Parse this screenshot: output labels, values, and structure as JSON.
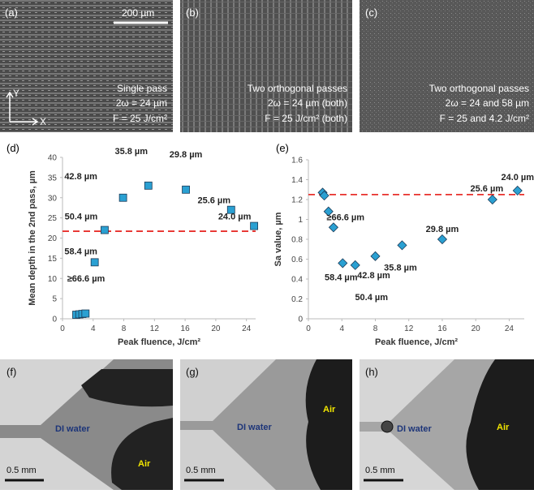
{
  "panels": {
    "a": {
      "label": "(a)",
      "scale_bar": "200 µm",
      "lines": [
        "Single pass",
        "2ω = 24 µm",
        "F = 25 J/cm²"
      ],
      "axis_y": "Y",
      "axis_x": "X"
    },
    "b": {
      "label": "(b)",
      "lines": [
        "Two orthogonal passes",
        "2ω = 24 µm (both)",
        "F = 25 J/cm² (both)"
      ]
    },
    "c": {
      "label": "(c)",
      "lines": [
        "Two orthogonal passes",
        "2ω = 24 and 58 µm",
        "F = 25 and 4.2 J/cm²"
      ]
    },
    "f": {
      "label": "(f)",
      "water": "DI water",
      "air": "Air",
      "scale_bar": "0.5 mm"
    },
    "g": {
      "label": "(g)",
      "water": "DI water",
      "air": "Air",
      "scale_bar": "0.5 mm"
    },
    "h": {
      "label": "(h)",
      "water": "DI water",
      "air": "Air",
      "scale_bar": "0.5 mm"
    }
  },
  "chart_data": [
    {
      "type": "scatter",
      "panel_label": "(d)",
      "xlabel": "Peak fluence, J/cm²",
      "ylabel": "Mean depth in the 2nd pass, µm",
      "x": [
        1.8,
        2.2,
        2.6,
        3.0,
        4.2,
        5.5,
        7.9,
        11.2,
        16.1,
        22.0,
        25.0
      ],
      "values": [
        1,
        1.1,
        1.2,
        1.3,
        14,
        22,
        30,
        33,
        32,
        27,
        23
      ],
      "point_labels": [
        "≥66.6 µm",
        null,
        null,
        null,
        "58.4 µm",
        "50.4 µm",
        "42.8 µm",
        "35.8 µm",
        "29.8 µm",
        "25.6 µm",
        "24.0 µm"
      ],
      "marker": "square",
      "color": "#2aa0d2",
      "ref_line": 21.7,
      "ref_color": "#e8302c",
      "xlim": [
        0,
        25.2
      ],
      "xticks": [
        0,
        4,
        8,
        12,
        16,
        20,
        24
      ],
      "ylim": [
        0,
        40
      ],
      "yticks": [
        0,
        5,
        10,
        15,
        20,
        25,
        30,
        35,
        40
      ]
    },
    {
      "type": "scatter",
      "panel_label": "(e)",
      "xlabel": "Peak fluence, J/cm²",
      "ylabel": "Sa value, µm",
      "x": [
        1.7,
        1.9,
        2.4,
        3.0,
        4.1,
        5.6,
        8.0,
        11.2,
        16.0,
        22.0,
        25.0
      ],
      "values": [
        1.27,
        1.24,
        1.08,
        0.92,
        0.56,
        0.54,
        0.63,
        0.74,
        0.8,
        1.2,
        1.29
      ],
      "point_labels": [
        null,
        null,
        "≥66.6 µm",
        null,
        "58.4 µm",
        "50.4 µm",
        "42.8 µm",
        "35.8 µm",
        "29.8 µm",
        "25.6 µm",
        "24.0 µm"
      ],
      "marker": "diamond",
      "color": "#2aa0d2",
      "ref_line": 1.25,
      "ref_color": "#e8302c",
      "xlim": [
        0,
        25.8
      ],
      "xticks": [
        0,
        4,
        8,
        12,
        16,
        20,
        24
      ],
      "ylim": [
        0,
        1.6
      ],
      "yticks": [
        0,
        0.2,
        0.4,
        0.6,
        0.8,
        1.0,
        1.2,
        1.4,
        1.6
      ]
    }
  ]
}
